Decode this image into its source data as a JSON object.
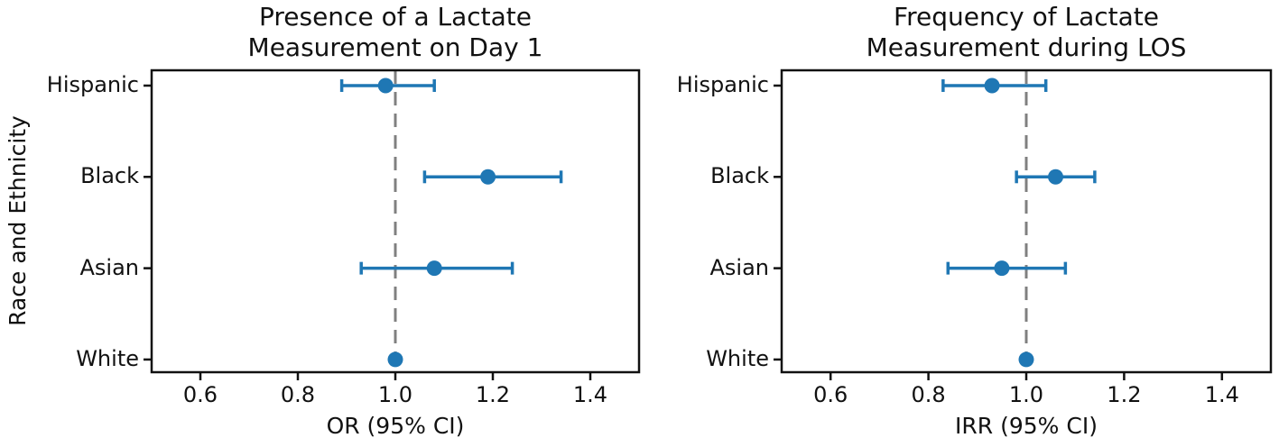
{
  "figure": {
    "background": "#ffffff",
    "text_color": "#111111",
    "accent_color": "#1f77b4",
    "reference_line_color": "#808080",
    "ylabel": "Race and Ethnicity"
  },
  "chart_data": [
    {
      "type": "scatter",
      "subtype": "forest-plot-errorbar",
      "title_lines": [
        "Presence of a Lactate",
        "Measurement on Day 1"
      ],
      "title": "Presence of a Lactate Measurement on Day 1",
      "xlabel": "OR (95% CI)",
      "ylabel": "Race and Ethnicity",
      "categories": [
        "Hispanic",
        "Black",
        "Asian",
        "White"
      ],
      "xlim": [
        0.5,
        1.5
      ],
      "xticks": [
        0.6,
        0.8,
        1.0,
        1.2,
        1.4
      ],
      "xtick_labels": [
        "0.6",
        "0.8",
        "1.0",
        "1.2",
        "1.4"
      ],
      "reference_line_x": 1.0,
      "grid": false,
      "legend": false,
      "points": [
        {
          "category": "Hispanic",
          "estimate": 0.98,
          "ci_low": 0.89,
          "ci_high": 1.08
        },
        {
          "category": "Black",
          "estimate": 1.19,
          "ci_low": 1.06,
          "ci_high": 1.34
        },
        {
          "category": "Asian",
          "estimate": 1.08,
          "ci_low": 0.93,
          "ci_high": 1.24
        },
        {
          "category": "White",
          "estimate": 1.0,
          "ci_low": null,
          "ci_high": null
        }
      ]
    },
    {
      "type": "scatter",
      "subtype": "forest-plot-errorbar",
      "title_lines": [
        "Frequency of Lactate",
        "Measurement during LOS"
      ],
      "title": "Frequency of Lactate Measurement during LOS",
      "xlabel": "IRR (95% CI)",
      "ylabel": "",
      "categories": [
        "Hispanic",
        "Black",
        "Asian",
        "White"
      ],
      "xlim": [
        0.5,
        1.5
      ],
      "xticks": [
        0.6,
        0.8,
        1.0,
        1.2,
        1.4
      ],
      "xtick_labels": [
        "0.6",
        "0.8",
        "1.0",
        "1.2",
        "1.4"
      ],
      "reference_line_x": 1.0,
      "grid": false,
      "legend": false,
      "points": [
        {
          "category": "Hispanic",
          "estimate": 0.93,
          "ci_low": 0.83,
          "ci_high": 1.04
        },
        {
          "category": "Black",
          "estimate": 1.06,
          "ci_low": 0.98,
          "ci_high": 1.14
        },
        {
          "category": "Asian",
          "estimate": 0.95,
          "ci_low": 0.84,
          "ci_high": 1.08
        },
        {
          "category": "White",
          "estimate": 1.0,
          "ci_low": null,
          "ci_high": null
        }
      ]
    }
  ]
}
